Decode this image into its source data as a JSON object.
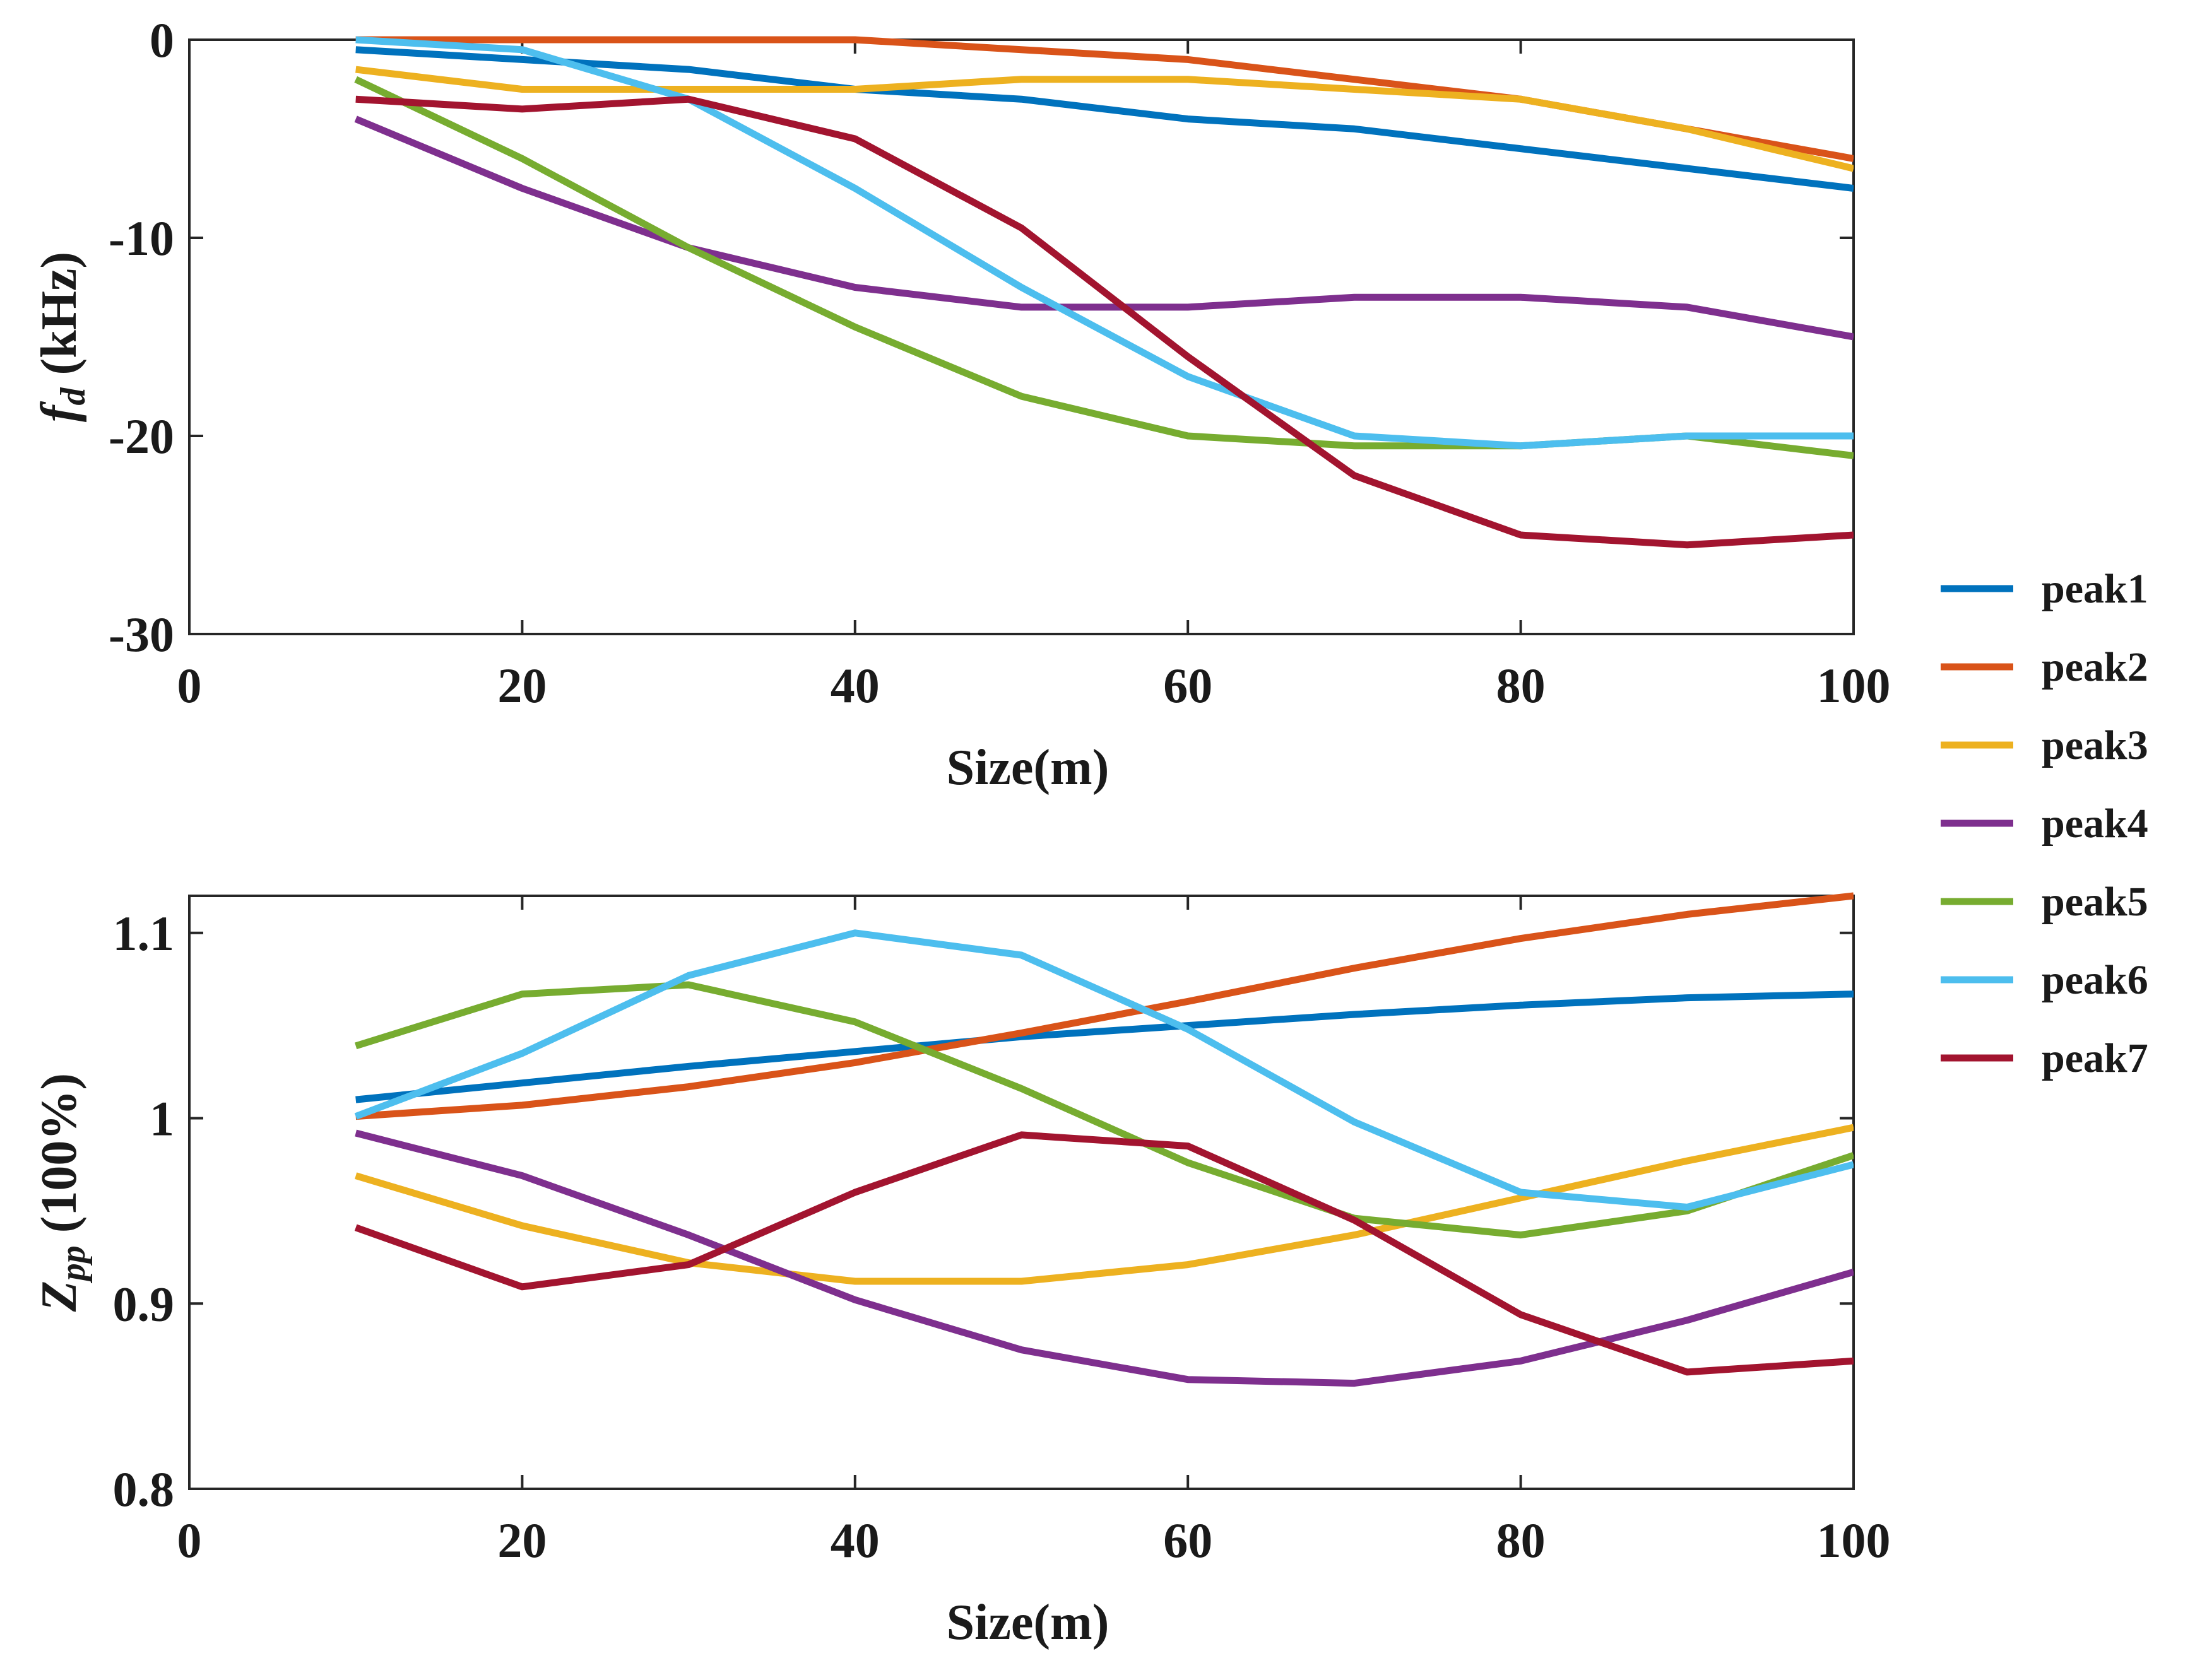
{
  "chart_data": [
    {
      "type": "line",
      "xlabel": "Size(m)",
      "ylabel": {
        "main": "f",
        "sub": "d",
        "unit": " (kHz)"
      },
      "xlim": [
        0,
        100
      ],
      "ylim": [
        -30,
        0
      ],
      "xticks": [
        0,
        20,
        40,
        60,
        80,
        100
      ],
      "yticks": [
        0,
        -10,
        -20,
        -30
      ],
      "x": [
        10,
        20,
        30,
        40,
        50,
        60,
        70,
        80,
        90,
        100
      ],
      "series": [
        {
          "name": "peak1",
          "values": [
            -0.5,
            -1.0,
            -1.5,
            -2.5,
            -3.0,
            -4.0,
            -4.5,
            -5.5,
            -6.5,
            -7.5
          ]
        },
        {
          "name": "peak2",
          "values": [
            0,
            0,
            0,
            0,
            -0.5,
            -1.0,
            -2.0,
            -3.0,
            -4.5,
            -6.0
          ]
        },
        {
          "name": "peak3",
          "values": [
            -1.5,
            -2.5,
            -2.5,
            -2.5,
            -2.0,
            -2.0,
            -2.5,
            -3.0,
            -4.5,
            -6.5
          ]
        },
        {
          "name": "peak4",
          "values": [
            -4.0,
            -7.5,
            -10.5,
            -12.5,
            -13.5,
            -13.5,
            -13.0,
            -13.0,
            -13.5,
            -15.0
          ]
        },
        {
          "name": "peak5",
          "values": [
            -2.0,
            -6.0,
            -10.5,
            -14.5,
            -18.0,
            -20.0,
            -20.5,
            -20.5,
            -20.0,
            -21.0
          ]
        },
        {
          "name": "peak6",
          "values": [
            0,
            -0.5,
            -3.0,
            -7.5,
            -12.5,
            -17.0,
            -20.0,
            -20.5,
            -20.0,
            -20.0
          ]
        },
        {
          "name": "peak7",
          "values": [
            -3.0,
            -3.5,
            -3.0,
            -5.0,
            -9.5,
            -16.0,
            -22.0,
            -25.0,
            -25.5,
            -25.0
          ]
        }
      ]
    },
    {
      "type": "line",
      "xlabel": "Size(m)",
      "ylabel": {
        "main": "Z",
        "sub": "pp",
        "unit": " (100%)"
      },
      "xlim": [
        0,
        100
      ],
      "ylim": [
        0.8,
        1.12
      ],
      "xticks": [
        0,
        20,
        40,
        60,
        80,
        100
      ],
      "yticks": [
        0.8,
        0.9,
        1,
        1.1
      ],
      "ytick_labels": [
        "0.8",
        "0.9",
        "1",
        "1.1"
      ],
      "x": [
        10,
        20,
        30,
        40,
        50,
        60,
        70,
        80,
        90,
        100
      ],
      "series": [
        {
          "name": "peak1",
          "values": [
            1.01,
            1.019,
            1.028,
            1.036,
            1.044,
            1.05,
            1.056,
            1.061,
            1.065,
            1.067
          ]
        },
        {
          "name": "peak2",
          "values": [
            1.001,
            1.007,
            1.017,
            1.03,
            1.046,
            1.063,
            1.081,
            1.097,
            1.11,
            1.12
          ]
        },
        {
          "name": "peak3",
          "values": [
            0.969,
            0.942,
            0.922,
            0.912,
            0.912,
            0.921,
            0.937,
            0.957,
            0.977,
            0.995
          ]
        },
        {
          "name": "peak4",
          "values": [
            0.992,
            0.969,
            0.937,
            0.902,
            0.875,
            0.859,
            0.857,
            0.869,
            0.891,
            0.917
          ]
        },
        {
          "name": "peak5",
          "values": [
            1.039,
            1.067,
            1.072,
            1.052,
            1.016,
            0.976,
            0.946,
            0.937,
            0.95,
            0.98
          ]
        },
        {
          "name": "peak6",
          "values": [
            1.001,
            1.035,
            1.077,
            1.1,
            1.088,
            1.048,
            0.998,
            0.96,
            0.952,
            0.975
          ]
        },
        {
          "name": "peak7",
          "values": [
            0.941,
            0.909,
            0.921,
            0.96,
            0.991,
            0.985,
            0.945,
            0.894,
            0.863,
            0.869
          ]
        }
      ]
    }
  ],
  "legend": {
    "placement": "right",
    "entries": [
      {
        "name": "peak1",
        "color": "#0072BD"
      },
      {
        "name": "peak2",
        "color": "#D95319"
      },
      {
        "name": "peak3",
        "color": "#EDB120"
      },
      {
        "name": "peak4",
        "color": "#7E2F8E"
      },
      {
        "name": "peak5",
        "color": "#77AC30"
      },
      {
        "name": "peak6",
        "color": "#4DBEEE"
      },
      {
        "name": "peak7",
        "color": "#A2142F"
      }
    ]
  }
}
